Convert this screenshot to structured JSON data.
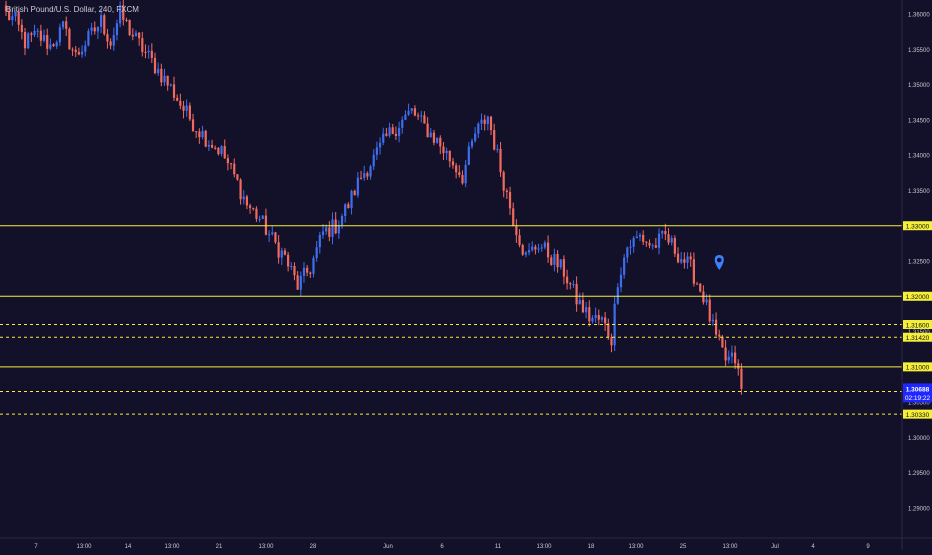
{
  "header": {
    "symbol_title": "British Pound/U.S. Dollar, 240, FXCM"
  },
  "colors": {
    "background": "#131129",
    "up_candle": "#3d6ef0",
    "down_candle": "#f26a5e",
    "level_line": "#f5ef3a",
    "axis_text": "#c9c9d4",
    "last_price_bg": "#1f27ff",
    "marker": "#3d80ff"
  },
  "chart_data": {
    "type": "candlestick",
    "title": "British Pound/U.S. Dollar, 240, FXCM",
    "ylim": [
      1.2875,
      1.3625
    ],
    "y_ticks": [
      "1.36000",
      "1.35500",
      "1.35000",
      "1.34500",
      "1.34000",
      "1.33500",
      "1.33000",
      "1.32500",
      "1.32000",
      "1.31500",
      "1.31000",
      "1.30500",
      "1.30000",
      "1.29500",
      "1.29000"
    ],
    "x_ticks": [
      "7",
      "13:00",
      "14",
      "13:00",
      "21",
      "13:00",
      "28",
      "Jun",
      "6",
      "11",
      "13:00",
      "18",
      "13:00",
      "25",
      "13:00",
      "Jul",
      "4",
      "9"
    ],
    "price_path": [
      [
        0,
        1.36
      ],
      [
        3,
        1.359
      ],
      [
        6,
        1.356
      ],
      [
        10,
        1.357
      ],
      [
        14,
        1.3555
      ],
      [
        18,
        1.358
      ],
      [
        22,
        1.354
      ],
      [
        26,
        1.3565
      ],
      [
        30,
        1.359
      ],
      [
        33,
        1.356
      ],
      [
        36,
        1.36
      ],
      [
        40,
        1.357
      ],
      [
        44,
        1.3545
      ],
      [
        48,
        1.352
      ],
      [
        52,
        1.3495
      ],
      [
        56,
        1.3465
      ],
      [
        60,
        1.344
      ],
      [
        64,
        1.342
      ],
      [
        68,
        1.3405
      ],
      [
        72,
        1.337
      ],
      [
        76,
        1.333
      ],
      [
        80,
        1.331
      ],
      [
        84,
        1.328
      ],
      [
        88,
        1.3255
      ],
      [
        92,
        1.3215
      ],
      [
        96,
        1.324
      ],
      [
        100,
        1.329
      ],
      [
        104,
        1.33
      ],
      [
        108,
        1.333
      ],
      [
        112,
        1.337
      ],
      [
        116,
        1.3395
      ],
      [
        120,
        1.3425
      ],
      [
        124,
        1.3445
      ],
      [
        128,
        1.3462
      ],
      [
        132,
        1.344
      ],
      [
        136,
        1.342
      ],
      [
        140,
        1.3395
      ],
      [
        144,
        1.337
      ],
      [
        148,
        1.343
      ],
      [
        152,
        1.3455
      ],
      [
        156,
        1.338
      ],
      [
        160,
        1.331
      ],
      [
        164,
        1.3255
      ],
      [
        168,
        1.3275
      ],
      [
        172,
        1.3255
      ],
      [
        176,
        1.3235
      ],
      [
        180,
        1.3195
      ],
      [
        184,
        1.317
      ],
      [
        188,
        1.3165
      ],
      [
        191,
        1.314
      ],
      [
        193,
        1.3225
      ],
      [
        196,
        1.327
      ],
      [
        200,
        1.3285
      ],
      [
        204,
        1.327
      ],
      [
        208,
        1.3285
      ],
      [
        212,
        1.326
      ],
      [
        216,
        1.324
      ],
      [
        220,
        1.32
      ],
      [
        224,
        1.314
      ],
      [
        227,
        1.311
      ],
      [
        230,
        1.311
      ],
      [
        232,
        1.307
      ]
    ],
    "last_candle_index": 232,
    "horizontal_levels": [
      {
        "price": 1.33,
        "label": "1.33000",
        "style": "solid"
      },
      {
        "price": 1.32,
        "label": "1.32000",
        "style": "solid"
      },
      {
        "price": 1.316,
        "label": "1.31600",
        "style": "dashed"
      },
      {
        "price": 1.3142,
        "label": "1.31420",
        "style": "dashed"
      },
      {
        "price": 1.31,
        "label": "1.31000",
        "style": "solid"
      },
      {
        "price": 1.3065,
        "label": "1.30650",
        "style": "dashed"
      },
      {
        "price": 1.3033,
        "label": "1.30330",
        "style": "dashed"
      }
    ],
    "last_price": {
      "value": 1.30688,
      "label": "1.30688",
      "countdown": "02:19:22"
    },
    "marker": {
      "index": 225,
      "price": 1.325
    },
    "grid": false
  }
}
